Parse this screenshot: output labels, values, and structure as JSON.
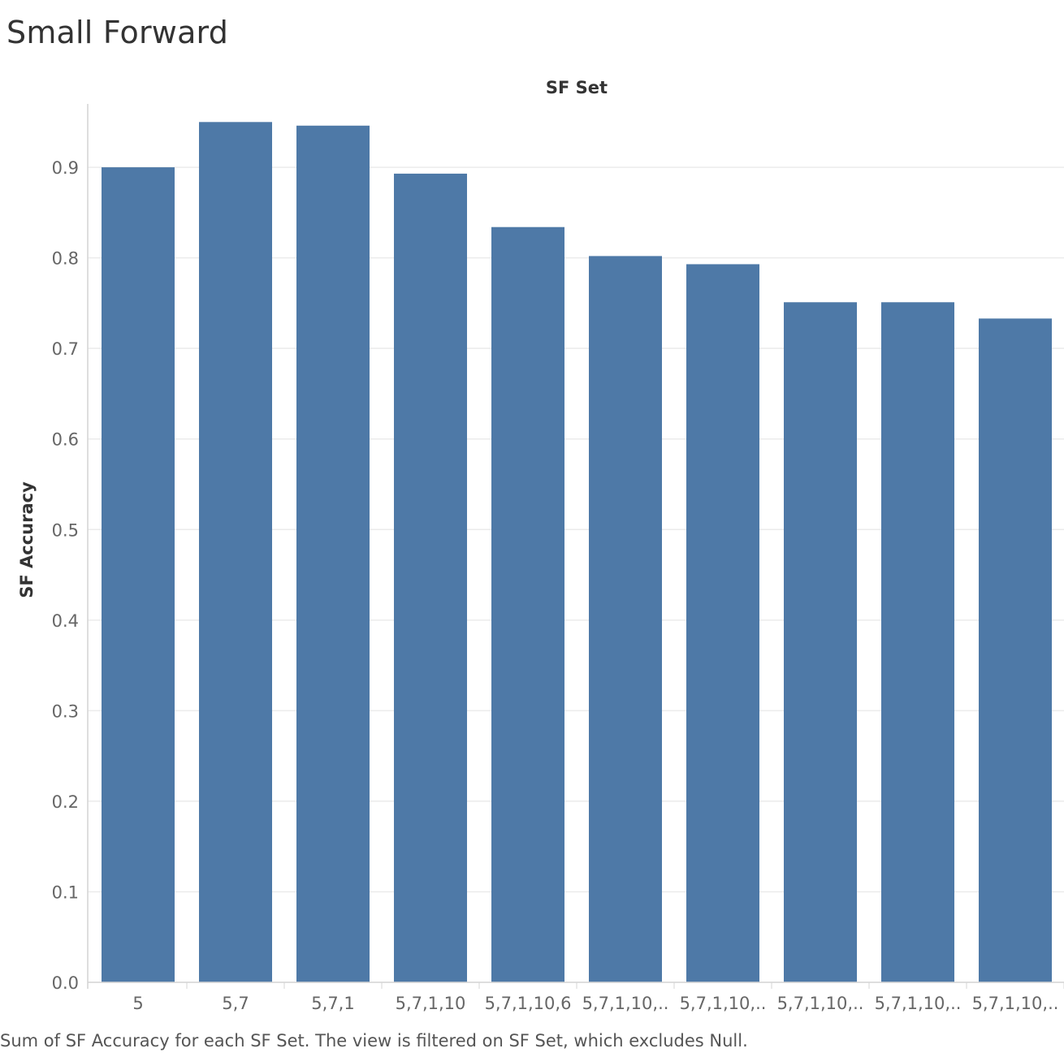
{
  "title": "Small Forward",
  "caption": "Sum of SF Accuracy for each SF Set. The view is filtered on SF Set, which excludes Null.",
  "colors": {
    "bar": "#4e79a7",
    "grid": "#ebebeb",
    "axis": "#d4d4d4"
  },
  "chart_data": {
    "type": "bar",
    "title": "Small Forward",
    "xlabel": "SF Set",
    "ylabel": "SF Accuracy",
    "categories": [
      "5",
      "5,7",
      "5,7,1",
      "5,7,1,10",
      "5,7,1,10,6",
      "5,7,1,10,..",
      "5,7,1,10,..",
      "5,7,1,10,..",
      "5,7,1,10,..",
      "5,7,1,10,.."
    ],
    "values": [
      0.9,
      0.95,
      0.946,
      0.893,
      0.834,
      0.802,
      0.793,
      0.751,
      0.751,
      0.733
    ],
    "ylim": [
      0,
      0.97
    ],
    "yticks": [
      0.0,
      0.1,
      0.2,
      0.3,
      0.4,
      0.5,
      0.6,
      0.7,
      0.8,
      0.9
    ],
    "ytick_labels": [
      "0.0",
      "0.1",
      "0.2",
      "0.3",
      "0.4",
      "0.5",
      "0.6",
      "0.7",
      "0.8",
      "0.9"
    ],
    "grid": true,
    "legend": "none"
  }
}
